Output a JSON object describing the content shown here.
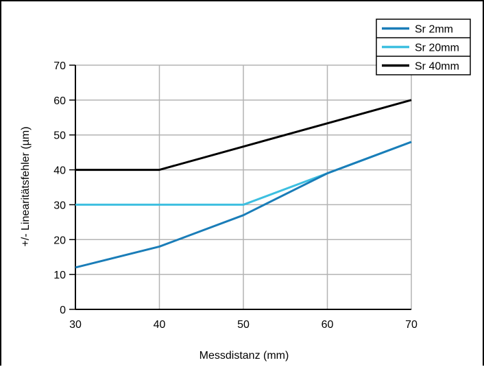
{
  "chart_data": {
    "type": "line",
    "xlabel": "Messdistanz (mm)",
    "ylabel": "+/- Linearitätsfehler (µm)",
    "xlim": [
      30,
      70
    ],
    "ylim": [
      0,
      70
    ],
    "x_ticks": [
      "30",
      "40",
      "50",
      "60",
      "70"
    ],
    "y_ticks": [
      "0",
      "10",
      "20",
      "30",
      "40",
      "50",
      "60",
      "70"
    ],
    "grid": true,
    "legend_position": "top-right",
    "series": [
      {
        "name": "Sr 2mm",
        "color": "#1a7db8",
        "x": [
          30,
          40,
          50,
          60,
          70
        ],
        "y": [
          12,
          18,
          27,
          39,
          48
        ]
      },
      {
        "name": "Sr 20mm",
        "color": "#3dbfe0",
        "x": [
          30,
          40,
          50,
          60,
          70
        ],
        "y": [
          30,
          30,
          30,
          39,
          48
        ]
      },
      {
        "name": "Sr 40mm",
        "color": "#000000",
        "x": [
          30,
          40,
          70
        ],
        "y": [
          40,
          40,
          60
        ]
      }
    ]
  }
}
